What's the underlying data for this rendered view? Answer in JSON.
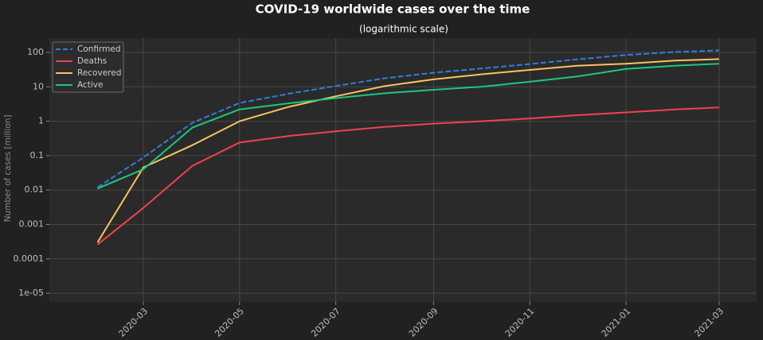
{
  "chart_data": {
    "type": "line",
    "title": "COVID-19 worldwide cases over the time",
    "subtitle": "(logarithmic scale)",
    "y_label": "Number of cases [million]",
    "x": [
      "2020-02",
      "2020-03",
      "2020-04",
      "2020-05",
      "2020-06",
      "2020-07",
      "2020-08",
      "2020-09",
      "2020-10",
      "2020-11",
      "2020-12",
      "2021-01",
      "2021-02",
      "2021-03"
    ],
    "series": [
      {
        "name": "Confirmed",
        "color": "#2f7ed8",
        "linestyle": "dashed",
        "values": [
          0.012,
          0.088,
          0.9,
          3.4,
          6.3,
          10.6,
          17.7,
          25.6,
          34,
          46,
          63,
          84,
          103,
          114
        ]
      },
      {
        "name": "Deaths",
        "color": "#f0424e",
        "linestyle": "solid",
        "values": [
          0.00026,
          0.003,
          0.05,
          0.24,
          0.37,
          0.51,
          0.68,
          0.85,
          1.0,
          1.2,
          1.5,
          1.8,
          2.2,
          2.5
        ]
      },
      {
        "name": "Recovered",
        "color": "#f7c45e",
        "linestyle": "solid",
        "values": [
          0.0003,
          0.045,
          0.2,
          1.0,
          2.6,
          5.3,
          10.5,
          16.5,
          23,
          31,
          41,
          47,
          58,
          64
        ]
      },
      {
        "name": "Active",
        "color": "#1dc77d",
        "linestyle": "solid",
        "values": [
          0.011,
          0.04,
          0.65,
          2.2,
          3.3,
          4.7,
          6.5,
          8.2,
          10,
          14,
          20,
          33,
          41,
          47
        ]
      }
    ],
    "xlim": [
      "2020-01",
      "2021-04"
    ],
    "xticks": [
      "2020-03",
      "2020-05",
      "2020-07",
      "2020-09",
      "2020-11",
      "2021-01",
      "2021-03"
    ],
    "ylim": [
      5.6e-06,
      260
    ],
    "yticks": [
      {
        "value": 1e-05,
        "label": "1e-05"
      },
      0.0001,
      0.001,
      0.01,
      0.1,
      1,
      10,
      100
    ],
    "log_y": true,
    "grid": true,
    "legend": "upper-left"
  }
}
